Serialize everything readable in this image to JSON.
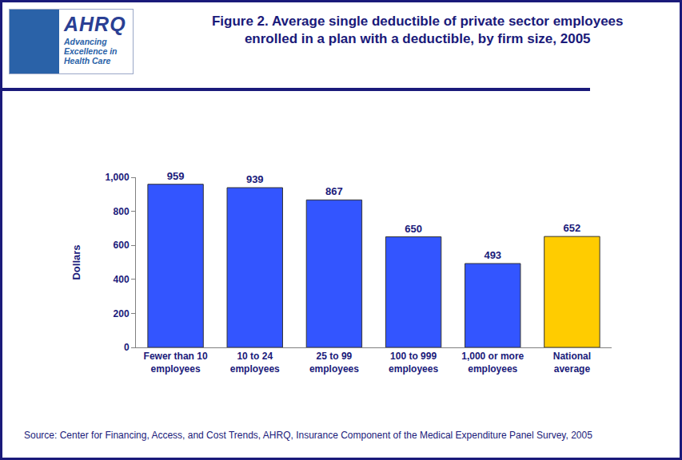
{
  "logo": {
    "name": "AHRQ",
    "tagline": [
      "Advancing",
      "Excellence in",
      "Health Care"
    ]
  },
  "chart_data": {
    "type": "bar",
    "title": "Figure 2. Average single deductible of private sector employees\nenrolled in a plan with a deductible, by firm size, 2005",
    "y_label": "Dollars",
    "categories": [
      "Fewer than 10\nemployees",
      "10 to 24\nemployees",
      "25 to 99\nemployees",
      "100 to 999\nemployees",
      "1,000 or more\nemployees",
      "National\naverage"
    ],
    "values": [
      959,
      939,
      867,
      650,
      493,
      652
    ],
    "colors": [
      "#3355ff",
      "#3355ff",
      "#3355ff",
      "#3355ff",
      "#3355ff",
      "#ffcc00"
    ],
    "ylim": [
      0,
      1000
    ],
    "yticks": [
      0,
      200,
      400,
      600,
      800,
      {
        "value": 1000,
        "label": "1,000"
      }
    ],
    "grid": false,
    "data_labels": true,
    "annotations": [
      "Source: Center for Financing, Access, and Cost Trends, AHRQ, Insurance Component of the Medical Expenditure Panel Survey, 2005"
    ]
  }
}
